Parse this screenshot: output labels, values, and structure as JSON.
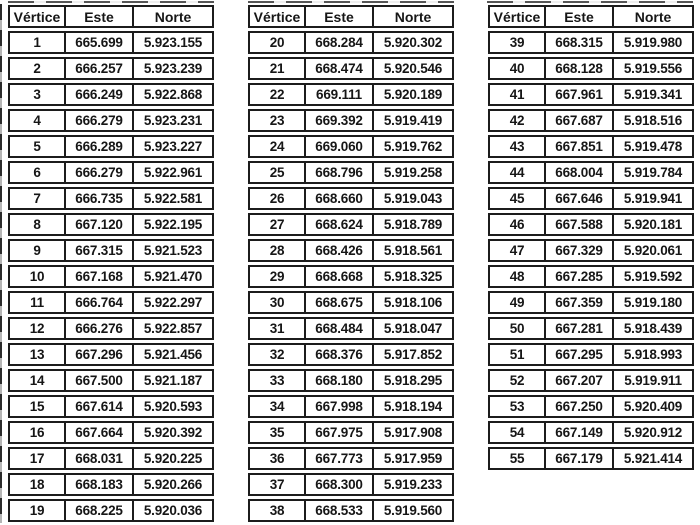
{
  "columns": [
    "Vértice",
    "Este",
    "Norte"
  ],
  "tables": [
    {
      "name": "vertices-1-19",
      "rows": [
        [
          "1",
          "665.699",
          "5.923.155"
        ],
        [
          "2",
          "666.257",
          "5.923.239"
        ],
        [
          "3",
          "666.249",
          "5.922.868"
        ],
        [
          "4",
          "666.279",
          "5.923.231"
        ],
        [
          "5",
          "666.289",
          "5.923.227"
        ],
        [
          "6",
          "666.279",
          "5.922.961"
        ],
        [
          "7",
          "666.735",
          "5.922.581"
        ],
        [
          "8",
          "667.120",
          "5.922.195"
        ],
        [
          "9",
          "667.315",
          "5.921.523"
        ],
        [
          "10",
          "667.168",
          "5.921.470"
        ],
        [
          "11",
          "666.764",
          "5.922.297"
        ],
        [
          "12",
          "666.276",
          "5.922.857"
        ],
        [
          "13",
          "667.296",
          "5.921.456"
        ],
        [
          "14",
          "667.500",
          "5.921.187"
        ],
        [
          "15",
          "667.614",
          "5.920.593"
        ],
        [
          "16",
          "667.664",
          "5.920.392"
        ],
        [
          "17",
          "668.031",
          "5.920.225"
        ],
        [
          "18",
          "668.183",
          "5.920.266"
        ],
        [
          "19",
          "668.225",
          "5.920.036"
        ]
      ]
    },
    {
      "name": "vertices-20-38",
      "rows": [
        [
          "20",
          "668.284",
          "5.920.302"
        ],
        [
          "21",
          "668.474",
          "5.920.546"
        ],
        [
          "22",
          "669.111",
          "5.920.189"
        ],
        [
          "23",
          "669.392",
          "5.919.419"
        ],
        [
          "24",
          "669.060",
          "5.919.762"
        ],
        [
          "25",
          "668.796",
          "5.919.258"
        ],
        [
          "26",
          "668.660",
          "5.919.043"
        ],
        [
          "27",
          "668.624",
          "5.918.789"
        ],
        [
          "28",
          "668.426",
          "5.918.561"
        ],
        [
          "29",
          "668.668",
          "5.918.325"
        ],
        [
          "30",
          "668.675",
          "5.918.106"
        ],
        [
          "31",
          "668.484",
          "5.918.047"
        ],
        [
          "32",
          "668.376",
          "5.917.852"
        ],
        [
          "33",
          "668.180",
          "5.918.295"
        ],
        [
          "34",
          "667.998",
          "5.918.194"
        ],
        [
          "35",
          "667.975",
          "5.917.908"
        ],
        [
          "36",
          "667.773",
          "5.917.959"
        ],
        [
          "37",
          "668.300",
          "5.919.233"
        ],
        [
          "38",
          "668.533",
          "5.919.560"
        ]
      ]
    },
    {
      "name": "vertices-39-55",
      "rows": [
        [
          "39",
          "668.315",
          "5.919.980"
        ],
        [
          "40",
          "668.128",
          "5.919.556"
        ],
        [
          "41",
          "667.961",
          "5.919.341"
        ],
        [
          "42",
          "667.687",
          "5.918.516"
        ],
        [
          "43",
          "667.851",
          "5.919.478"
        ],
        [
          "44",
          "668.004",
          "5.919.784"
        ],
        [
          "45",
          "667.646",
          "5.919.941"
        ],
        [
          "46",
          "667.588",
          "5.920.181"
        ],
        [
          "47",
          "667.329",
          "5.920.061"
        ],
        [
          "48",
          "667.285",
          "5.919.592"
        ],
        [
          "49",
          "667.359",
          "5.919.180"
        ],
        [
          "50",
          "667.281",
          "5.918.439"
        ],
        [
          "51",
          "667.295",
          "5.918.993"
        ],
        [
          "52",
          "667.207",
          "5.919.911"
        ],
        [
          "53",
          "667.250",
          "5.920.409"
        ],
        [
          "54",
          "667.149",
          "5.920.912"
        ],
        [
          "55",
          "667.179",
          "5.921.414"
        ]
      ]
    }
  ],
  "colors": {
    "text": "#161616",
    "border": "#1c1c1c",
    "background": "#ffffff"
  }
}
